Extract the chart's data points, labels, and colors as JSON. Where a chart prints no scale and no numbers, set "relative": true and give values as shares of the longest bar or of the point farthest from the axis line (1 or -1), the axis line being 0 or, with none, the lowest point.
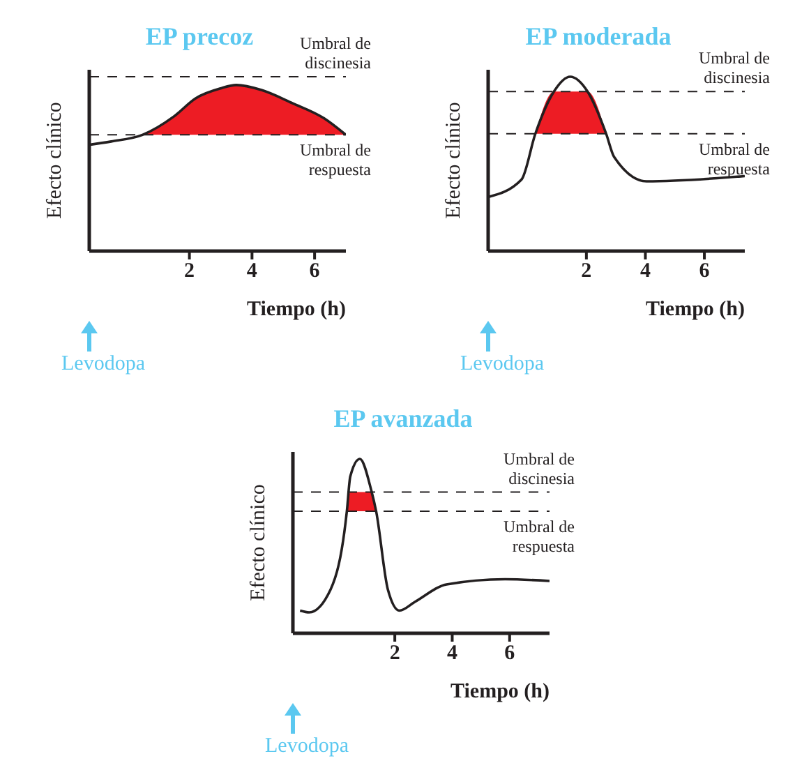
{
  "chart_data": [
    {
      "type": "line",
      "title": "EP precoz",
      "xlabel": "Tiempo (h)",
      "ylabel": "Efecto clínico",
      "relative": true,
      "xlim": [
        -1.2,
        7.0
      ],
      "xticks": [
        2,
        4,
        6
      ],
      "grid": false,
      "line_style": "solid",
      "marker": "none",
      "annotations": [
        "Levodopa"
      ],
      "ref_lines": [
        {
          "axis": "y",
          "value": 1.05,
          "label": "Umbral de discinesia",
          "line_style": "dashed",
          "color": "#231f20"
        },
        {
          "axis": "y",
          "value": 0.7,
          "label": "Umbral de respuesta",
          "line_style": "dashed",
          "color": "#231f20"
        }
      ],
      "series": [
        {
          "color": "#231f20",
          "x": [
            -1.2,
            -0.5,
            0.5,
            1.5,
            2.2,
            3,
            3.5,
            4.3,
            5.3,
            6.3,
            7.0
          ],
          "values": [
            0.64,
            0.66,
            0.7,
            0.81,
            0.92,
            0.98,
            1,
            0.97,
            0.89,
            0.8,
            0.7
          ],
          "lower": [
            null,
            null,
            0.7,
            0.7,
            0.7,
            0.7,
            0.7,
            0.7,
            0.7,
            0.7,
            0.7
          ],
          "upper": [
            null,
            null,
            0.7,
            0.81,
            0.92,
            0.98,
            1,
            0.97,
            0.89,
            0.8,
            0.7
          ]
        }
      ]
    },
    {
      "type": "line",
      "title": "EP moderada",
      "xlabel": "Tiempo (h)",
      "ylabel": "Efecto clínico",
      "relative": true,
      "xlim": [
        -1.33,
        7.37
      ],
      "xticks": [
        2,
        4,
        6
      ],
      "grid": false,
      "line_style": "solid",
      "marker": "none",
      "annotations": [
        "Levodopa"
      ],
      "ref_lines": [
        {
          "axis": "y",
          "value": 0.915,
          "label": "Umbral de discinesia",
          "line_style": "dashed",
          "color": "#231f20"
        },
        {
          "axis": "y",
          "value": 0.673,
          "label": "Umbral de respuesta",
          "line_style": "dashed",
          "color": "#231f20"
        }
      ],
      "series": [
        {
          "color": "#231f20",
          "x": [
            -1.33,
            -0.2,
            0.27,
            0.9,
            1.45,
            2.04,
            2.67,
            2.94,
            4.04,
            7.37
          ],
          "values": [
            0.31,
            0.41,
            0.673,
            0.915,
            1,
            0.915,
            0.673,
            0.54,
            0.4,
            0.43
          ],
          "lower": [
            null,
            null,
            0.673,
            0.673,
            0.673,
            0.673,
            0.673,
            null,
            null,
            null
          ],
          "upper": [
            null,
            null,
            0.673,
            0.915,
            0.915,
            0.915,
            0.673,
            null,
            null,
            null
          ]
        }
      ]
    },
    {
      "type": "line",
      "title": "EP avanzada",
      "xlabel": "Tiempo (h)",
      "ylabel": "Efecto clínico",
      "relative": true,
      "xlim": [
        -1.55,
        7.39
      ],
      "xticks": [
        2,
        4,
        6
      ],
      "grid": false,
      "line_style": "solid",
      "marker": "none",
      "annotations": [
        "Levodopa"
      ],
      "ref_lines": [
        {
          "axis": "y",
          "value": 0.81,
          "label": "Umbral de discinesia",
          "line_style": "dashed",
          "color": "#231f20"
        },
        {
          "axis": "y",
          "value": 0.7,
          "label": "Umbral de respuesta",
          "line_style": "dashed",
          "color": "#231f20"
        }
      ],
      "series": [
        {
          "color": "#231f20",
          "x": [
            -1.3,
            -0.98,
            -0.24,
            0.33,
            0.45,
            0.78,
            1.18,
            1.35,
            1.76,
            2.16,
            2.7,
            3.8,
            5.84,
            7.39
          ],
          "values": [
            0.13,
            0.12,
            0.25,
            0.7,
            0.9,
            1,
            0.82,
            0.7,
            0.25,
            0.13,
            0.18,
            0.28,
            0.31,
            0.3
          ],
          "lower": [
            null,
            null,
            null,
            0.7,
            0.7,
            0.7,
            0.7,
            0.7,
            null,
            null,
            null,
            null,
            null,
            null
          ],
          "upper": [
            null,
            null,
            null,
            0.7,
            0.81,
            0.81,
            0.81,
            0.7,
            null,
            null,
            null,
            null,
            null,
            null
          ]
        }
      ]
    }
  ]
}
